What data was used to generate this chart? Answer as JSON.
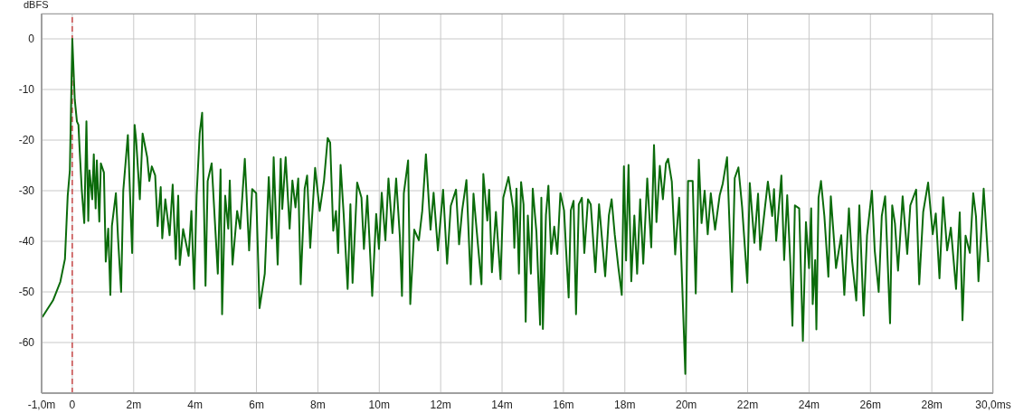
{
  "chart_data": {
    "type": "line",
    "ylabel": "dBFS",
    "color": "#0b6b0b",
    "marker": "none",
    "line_style": "solid",
    "grid": true,
    "xlim": [
      -1,
      30
    ],
    "ylim": [
      -70,
      5
    ],
    "xticks": [
      {
        "value": -1,
        "label": "-1,0m"
      },
      0,
      {
        "value": 2,
        "label": "2m"
      },
      {
        "value": 4,
        "label": "4m"
      },
      {
        "value": 6,
        "label": "6m"
      },
      {
        "value": 8,
        "label": "8m"
      },
      {
        "value": 10,
        "label": "10m"
      },
      {
        "value": 12,
        "label": "12m"
      },
      {
        "value": 14,
        "label": "14m"
      },
      {
        "value": 16,
        "label": "16m"
      },
      {
        "value": 18,
        "label": "18m"
      },
      {
        "value": 20,
        "label": "20m"
      },
      {
        "value": 22,
        "label": "22m"
      },
      {
        "value": 24,
        "label": "24m"
      },
      {
        "value": 26,
        "label": "26m"
      },
      {
        "value": 28,
        "label": "28m"
      },
      {
        "value": 30,
        "label": "30,0ms"
      }
    ],
    "yticks": [
      0,
      -10,
      -20,
      -30,
      -40,
      -50,
      -60
    ],
    "ref_lines": [
      {
        "axis": "x",
        "value": 0,
        "color": "#c00000",
        "line_style": "dashed"
      }
    ],
    "x": [
      -0.98,
      -0.63,
      -0.39,
      -0.24,
      -0.2,
      -0.15,
      -0.08,
      0,
      0.08,
      0.15,
      0.2,
      0.24,
      0.31,
      0.39,
      0.46,
      0.52,
      0.56,
      0.65,
      0.7,
      0.76,
      0.8,
      0.88,
      0.93,
      1.03,
      1.09,
      1.17,
      1.24,
      1.29,
      1.42,
      1.49,
      1.59,
      1.66,
      1.81,
      1.95,
      2.03,
      2.08,
      2.2,
      2.29,
      2.44,
      2.51,
      2.59,
      2.7,
      2.78,
      2.88,
      2.93,
      3.03,
      3.17,
      3.27,
      3.37,
      3.45,
      3.5,
      3.61,
      3.79,
      3.88,
      3.97,
      4.05,
      4.15,
      4.23,
      4.34,
      4.41,
      4.54,
      4.74,
      4.83,
      4.88,
      4.98,
      5.08,
      5.13,
      5.22,
      5.37,
      5.47,
      5.62,
      5.76,
      5.86,
      5.99,
      6.1,
      6.27,
      6.4,
      6.5,
      6.56,
      6.69,
      6.79,
      6.84,
      6.95,
      7.08,
      7.17,
      7.27,
      7.36,
      7.44,
      7.57,
      7.65,
      7.75,
      7.91,
      8.06,
      8.2,
      8.32,
      8.4,
      8.5,
      8.59,
      8.66,
      8.74,
      8.84,
      8.97,
      9.06,
      9.13,
      9.28,
      9.42,
      9.5,
      9.61,
      9.77,
      9.9,
      9.99,
      10.08,
      10.2,
      10.3,
      10.43,
      10.55,
      10.67,
      10.74,
      10.8,
      10.94,
      11.01,
      11.14,
      11.29,
      11.4,
      11.52,
      11.67,
      11.77,
      11.91,
      12.08,
      12.21,
      12.33,
      12.5,
      12.6,
      12.7,
      12.84,
      12.98,
      13.07,
      13.2,
      13.33,
      13.39,
      13.52,
      13.58,
      13.67,
      13.8,
      13.95,
      14.04,
      14.21,
      14.36,
      14.4,
      14.47,
      14.55,
      14.62,
      14.7,
      14.77,
      14.84,
      14.94,
      15,
      15.12,
      15.24,
      15.28,
      15.33,
      15.43,
      15.51,
      15.6,
      15.7,
      15.8,
      15.9,
      16.02,
      16.08,
      16.17,
      16.24,
      16.33,
      16.41,
      16.5,
      16.6,
      16.68,
      16.8,
      16.89,
      17.04,
      17.16,
      17.36,
      17.48,
      17.57,
      17.67,
      17.79,
      17.9,
      17.97,
      18.04,
      18.12,
      18.21,
      18.31,
      18.4,
      18.5,
      18.6,
      18.73,
      18.86,
      18.95,
      19.03,
      19.14,
      19.24,
      19.34,
      19.41,
      19.53,
      19.64,
      19.77,
      19.97,
      20.06,
      20.21,
      20.31,
      20.41,
      20.5,
      20.6,
      20.7,
      20.8,
      20.94,
      21.09,
      21.19,
      21.33,
      21.49,
      21.58,
      21.7,
      21.82,
      21.99,
      22.07,
      22.22,
      22.34,
      22.41,
      22.66,
      22.8,
      22.86,
      22.93,
      23.1,
      23.19,
      23.29,
      23.39,
      23.46,
      23.54,
      23.68,
      23.8,
      23.9,
      24.0,
      24.07,
      24.12,
      24.2,
      24.24,
      24.31,
      24.39,
      24.5,
      24.63,
      24.71,
      24.88,
      25.05,
      25.15,
      25.3,
      25.4,
      25.54,
      25.64,
      25.78,
      25.89,
      26.05,
      26.14,
      26.27,
      26.37,
      26.48,
      26.64,
      26.71,
      26.8,
      26.9,
      27.05,
      27.2,
      27.3,
      27.49,
      27.59,
      27.72,
      27.88,
      28.03,
      28.13,
      28.25,
      28.37,
      28.5,
      28.62,
      28.79,
      28.91,
      29.0,
      29.1,
      29.24,
      29.35,
      29.44,
      29.52,
      29.69,
      29.84
    ],
    "values": [
      -55,
      -51.7,
      -48,
      -43.5,
      -38,
      -31,
      -26,
      0,
      -12,
      -16.3,
      -17,
      -22,
      -30,
      -36.4,
      -16.3,
      -36,
      -26,
      -31.7,
      -22.8,
      -33.5,
      -24,
      -36.1,
      -24.6,
      -26.4,
      -44,
      -37.5,
      -50.6,
      -37,
      -30.5,
      -39.4,
      -50,
      -30,
      -19,
      -42.3,
      -17,
      -20,
      -31.7,
      -18.7,
      -23.4,
      -28.1,
      -25.2,
      -27,
      -37,
      -29.3,
      -39.4,
      -31.7,
      -38.8,
      -28.8,
      -43.5,
      -31,
      -44.7,
      -37.6,
      -42.9,
      -34,
      -49.4,
      -31,
      -18.7,
      -14.6,
      -48.8,
      -28.1,
      -24.6,
      -46.4,
      -25.8,
      -54.4,
      -31,
      -37.5,
      -28,
      -44.6,
      -34,
      -37.5,
      -23.7,
      -41.8,
      -29.7,
      -30.5,
      -53.2,
      -46.4,
      -27.3,
      -39.4,
      -23.4,
      -44.6,
      -23.7,
      -33.6,
      -23.4,
      -37.5,
      -28,
      -33.3,
      -27.6,
      -48.5,
      -29.6,
      -27,
      -41.3,
      -25.5,
      -34,
      -28,
      -19.6,
      -20.5,
      -37.9,
      -34,
      -42.3,
      -24.9,
      -34.6,
      -49.4,
      -32.7,
      -48.2,
      -28.4,
      -31.4,
      -41.5,
      -31,
      -50.8,
      -34.6,
      -41.5,
      -30.4,
      -39.8,
      -27.6,
      -38.4,
      -27.6,
      -39,
      -50.8,
      -30.5,
      -24,
      -52.4,
      -37.7,
      -39.8,
      -34,
      -22.8,
      -37.7,
      -30.4,
      -41.8,
      -29.8,
      -44.4,
      -33,
      -29.8,
      -40.6,
      -33.9,
      -27.9,
      -48.5,
      -30.6,
      -39.7,
      -48.5,
      -26.7,
      -35.9,
      -29.8,
      -46.1,
      -34.2,
      -47.5,
      -31.4,
      -27.3,
      -33.4,
      -41.3,
      -29.6,
      -46.4,
      -28.3,
      -32.7,
      -55.9,
      -34.9,
      -46.4,
      -29.6,
      -38.2,
      -56.5,
      -31.4,
      -57.3,
      -34.8,
      -29,
      -42.5,
      -37.1,
      -42.5,
      -30.5,
      -33.9,
      -41,
      -51.1,
      -33.9,
      -32,
      -54.4,
      -32.7,
      -31.4,
      -42.3,
      -31.7,
      -32.7,
      -46.1,
      -32.7,
      -46.9,
      -34.9,
      -31.7,
      -38.6,
      -45.2,
      -50.6,
      -25.2,
      -43.8,
      -24.9,
      -47.9,
      -34.9,
      -46.4,
      -31.7,
      -44.4,
      -27.6,
      -41.2,
      -21,
      -36.2,
      -25.1,
      -31.7,
      -24.6,
      -23.7,
      -28.2,
      -42.6,
      -31.4,
      -66.2,
      -28.1,
      -28.1,
      -50.3,
      -23.9,
      -36.4,
      -30,
      -38.6,
      -30.5,
      -37.7,
      -30.9,
      -28.6,
      -23.4,
      -50,
      -27.5,
      -25.4,
      -33.2,
      -48.2,
      -28.5,
      -40.3,
      -30.6,
      -41.7,
      -28.2,
      -35,
      -29.7,
      -39.9,
      -27,
      -43.7,
      -30.9,
      -44.1,
      -56.7,
      -32.9,
      -33.5,
      -59.7,
      -36.2,
      -45.3,
      -33.5,
      -52.4,
      -43.7,
      -57.4,
      -31.4,
      -28.1,
      -35,
      -47,
      -31.1,
      -45.3,
      -38.8,
      -50.6,
      -33.5,
      -43.7,
      -51.7,
      -32.9,
      -54.7,
      -38.8,
      -30,
      -41.8,
      -50,
      -35,
      -31.1,
      -56.2,
      -32.9,
      -36.5,
      -45.8,
      -31.1,
      -42.5,
      -32.9,
      -29.8,
      -48.5,
      -34.2,
      -28.4,
      -38.6,
      -34.5,
      -47.3,
      -31.3,
      -41.8,
      -37.3,
      -49.4,
      -34.3,
      -55.6,
      -38.9,
      -42.3,
      -30.5,
      -35.1,
      -47.9,
      -29.6,
      -44.1
    ]
  }
}
